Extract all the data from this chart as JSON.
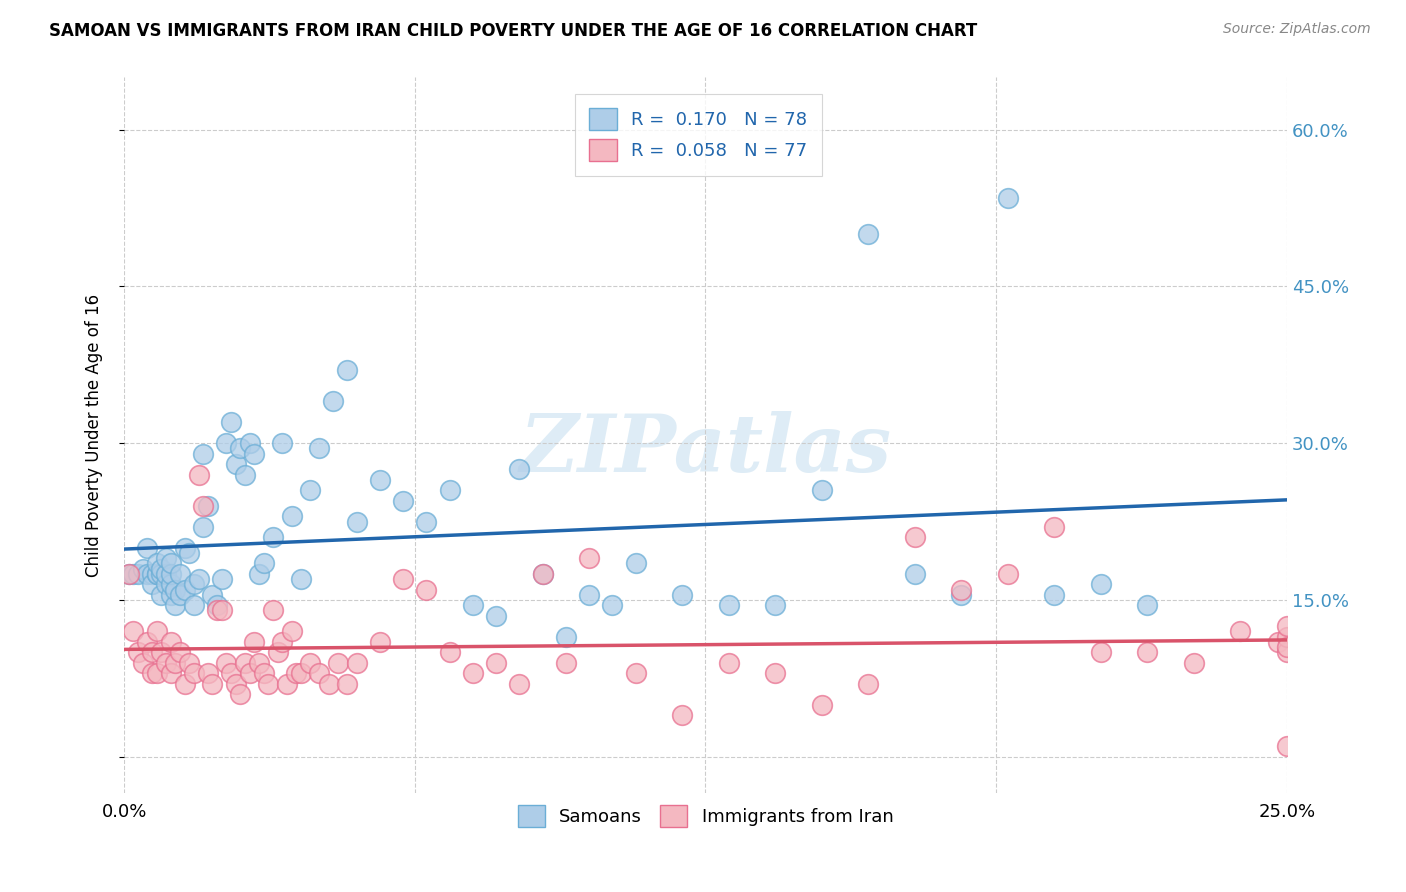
{
  "title": "SAMOAN VS IMMIGRANTS FROM IRAN CHILD POVERTY UNDER THE AGE OF 16 CORRELATION CHART",
  "source": "Source: ZipAtlas.com",
  "ylabel": "Child Poverty Under the Age of 16",
  "y_tick_labels": [
    "",
    "15.0%",
    "30.0%",
    "45.0%",
    "60.0%"
  ],
  "x_range": [
    0.0,
    0.25
  ],
  "y_range": [
    -0.035,
    0.65
  ],
  "watermark": "ZIPatlas",
  "legend_r1": "R =  0.170",
  "legend_n1": "N = 78",
  "legend_r2": "R =  0.058",
  "legend_n2": "N = 77",
  "legend_label1": "Samoans",
  "legend_label2": "Immigrants from Iran",
  "color_blue_fill": "#aecde8",
  "color_blue_edge": "#6baed6",
  "color_pink_fill": "#f4b8c1",
  "color_pink_edge": "#e87090",
  "color_blue_line": "#2166ac",
  "color_pink_line": "#d9536a",
  "color_right_ticks": "#4393c3",
  "blue_x": [
    0.001,
    0.002,
    0.003,
    0.004,
    0.005,
    0.005,
    0.006,
    0.006,
    0.007,
    0.007,
    0.007,
    0.008,
    0.008,
    0.008,
    0.009,
    0.009,
    0.009,
    0.01,
    0.01,
    0.01,
    0.01,
    0.011,
    0.011,
    0.012,
    0.012,
    0.013,
    0.013,
    0.014,
    0.015,
    0.015,
    0.016,
    0.017,
    0.017,
    0.018,
    0.019,
    0.02,
    0.021,
    0.022,
    0.023,
    0.024,
    0.025,
    0.026,
    0.027,
    0.028,
    0.029,
    0.03,
    0.032,
    0.034,
    0.036,
    0.038,
    0.04,
    0.042,
    0.045,
    0.048,
    0.05,
    0.055,
    0.06,
    0.065,
    0.07,
    0.075,
    0.08,
    0.085,
    0.09,
    0.095,
    0.1,
    0.105,
    0.11,
    0.12,
    0.13,
    0.14,
    0.15,
    0.16,
    0.17,
    0.18,
    0.19,
    0.2,
    0.21,
    0.22
  ],
  "blue_y": [
    0.175,
    0.175,
    0.175,
    0.18,
    0.175,
    0.2,
    0.175,
    0.165,
    0.175,
    0.175,
    0.185,
    0.155,
    0.175,
    0.18,
    0.165,
    0.175,
    0.19,
    0.155,
    0.165,
    0.175,
    0.185,
    0.145,
    0.16,
    0.155,
    0.175,
    0.16,
    0.2,
    0.195,
    0.145,
    0.165,
    0.17,
    0.29,
    0.22,
    0.24,
    0.155,
    0.145,
    0.17,
    0.3,
    0.32,
    0.28,
    0.295,
    0.27,
    0.3,
    0.29,
    0.175,
    0.185,
    0.21,
    0.3,
    0.23,
    0.17,
    0.255,
    0.295,
    0.34,
    0.37,
    0.225,
    0.265,
    0.245,
    0.225,
    0.255,
    0.145,
    0.135,
    0.275,
    0.175,
    0.115,
    0.155,
    0.145,
    0.185,
    0.155,
    0.145,
    0.145,
    0.255,
    0.5,
    0.175,
    0.155,
    0.535,
    0.155,
    0.165,
    0.145
  ],
  "pink_x": [
    0.001,
    0.002,
    0.003,
    0.004,
    0.005,
    0.006,
    0.006,
    0.007,
    0.007,
    0.008,
    0.009,
    0.01,
    0.01,
    0.011,
    0.012,
    0.013,
    0.014,
    0.015,
    0.016,
    0.017,
    0.018,
    0.019,
    0.02,
    0.021,
    0.022,
    0.023,
    0.024,
    0.025,
    0.026,
    0.027,
    0.028,
    0.029,
    0.03,
    0.031,
    0.032,
    0.033,
    0.034,
    0.035,
    0.036,
    0.037,
    0.038,
    0.04,
    0.042,
    0.044,
    0.046,
    0.048,
    0.05,
    0.055,
    0.06,
    0.065,
    0.07,
    0.075,
    0.08,
    0.085,
    0.09,
    0.095,
    0.1,
    0.11,
    0.12,
    0.13,
    0.14,
    0.15,
    0.16,
    0.17,
    0.18,
    0.19,
    0.2,
    0.21,
    0.22,
    0.23,
    0.24,
    0.248,
    0.25,
    0.25,
    0.25,
    0.25,
    0.25
  ],
  "pink_y": [
    0.175,
    0.12,
    0.1,
    0.09,
    0.11,
    0.1,
    0.08,
    0.12,
    0.08,
    0.1,
    0.09,
    0.08,
    0.11,
    0.09,
    0.1,
    0.07,
    0.09,
    0.08,
    0.27,
    0.24,
    0.08,
    0.07,
    0.14,
    0.14,
    0.09,
    0.08,
    0.07,
    0.06,
    0.09,
    0.08,
    0.11,
    0.09,
    0.08,
    0.07,
    0.14,
    0.1,
    0.11,
    0.07,
    0.12,
    0.08,
    0.08,
    0.09,
    0.08,
    0.07,
    0.09,
    0.07,
    0.09,
    0.11,
    0.17,
    0.16,
    0.1,
    0.08,
    0.09,
    0.07,
    0.175,
    0.09,
    0.19,
    0.08,
    0.04,
    0.09,
    0.08,
    0.05,
    0.07,
    0.21,
    0.16,
    0.175,
    0.22,
    0.1,
    0.1,
    0.09,
    0.12,
    0.11,
    0.1,
    0.115,
    0.125,
    0.105,
    0.01
  ]
}
